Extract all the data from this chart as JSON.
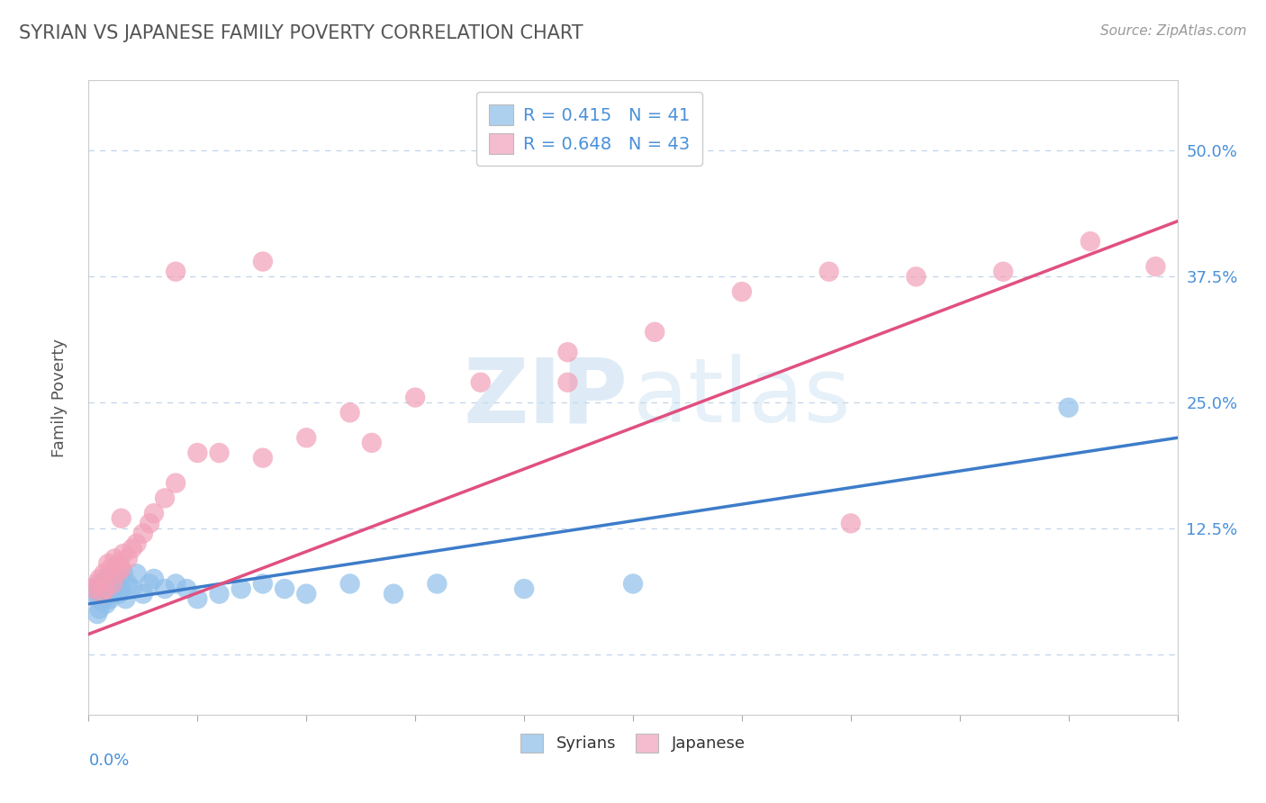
{
  "title": "SYRIAN VS JAPANESE FAMILY POVERTY CORRELATION CHART",
  "source": "Source: ZipAtlas.com",
  "ylabel": "Family Poverty",
  "xlim": [
    0.0,
    0.5
  ],
  "ylim": [
    -0.05,
    0.55
  ],
  "syrians_color": "#8fbfea",
  "japanese_color": "#f2a0b8",
  "syrians_line_color": "#3d7cc9",
  "japanese_line_color": "#e05080",
  "legend_blue_patch": "#add0ef",
  "legend_pink_patch": "#f5bcd0",
  "R_syrians": 0.415,
  "N_syrians": 41,
  "R_japanese": 0.648,
  "N_japanese": 43,
  "background_color": "#ffffff",
  "grid_color": "#c0d4e8",
  "title_color": "#555555",
  "tick_label_color": "#4a90d9",
  "syrians_x": [
    0.002,
    0.003,
    0.004,
    0.005,
    0.005,
    0.006,
    0.007,
    0.007,
    0.008,
    0.008,
    0.009,
    0.01,
    0.01,
    0.011,
    0.012,
    0.013,
    0.014,
    0.015,
    0.016,
    0.017,
    0.018,
    0.02,
    0.022,
    0.025,
    0.028,
    0.03,
    0.035,
    0.04,
    0.045,
    0.05,
    0.06,
    0.07,
    0.08,
    0.09,
    0.1,
    0.12,
    0.14,
    0.16,
    0.2,
    0.25,
    0.45
  ],
  "syrians_y": [
    0.065,
    0.06,
    0.04,
    0.055,
    0.045,
    0.07,
    0.055,
    0.06,
    0.05,
    0.075,
    0.065,
    0.055,
    0.08,
    0.06,
    0.07,
    0.075,
    0.06,
    0.065,
    0.08,
    0.055,
    0.07,
    0.065,
    0.08,
    0.06,
    0.07,
    0.075,
    0.065,
    0.07,
    0.065,
    0.055,
    0.06,
    0.065,
    0.07,
    0.065,
    0.06,
    0.07,
    0.06,
    0.07,
    0.065,
    0.07,
    0.245
  ],
  "japanese_x": [
    0.002,
    0.004,
    0.005,
    0.006,
    0.007,
    0.008,
    0.009,
    0.01,
    0.011,
    0.012,
    0.013,
    0.014,
    0.015,
    0.016,
    0.018,
    0.02,
    0.022,
    0.025,
    0.028,
    0.03,
    0.035,
    0.04,
    0.05,
    0.06,
    0.08,
    0.1,
    0.12,
    0.15,
    0.18,
    0.22,
    0.26,
    0.3,
    0.34,
    0.38,
    0.42,
    0.46,
    0.49,
    0.22,
    0.35,
    0.13,
    0.08,
    0.04,
    0.015
  ],
  "japanese_y": [
    0.065,
    0.07,
    0.075,
    0.06,
    0.08,
    0.065,
    0.09,
    0.085,
    0.07,
    0.095,
    0.08,
    0.09,
    0.085,
    0.1,
    0.095,
    0.105,
    0.11,
    0.12,
    0.13,
    0.14,
    0.155,
    0.17,
    0.2,
    0.2,
    0.195,
    0.215,
    0.24,
    0.255,
    0.27,
    0.3,
    0.32,
    0.36,
    0.38,
    0.375,
    0.38,
    0.41,
    0.385,
    0.27,
    0.13,
    0.21,
    0.39,
    0.38,
    0.135
  ]
}
